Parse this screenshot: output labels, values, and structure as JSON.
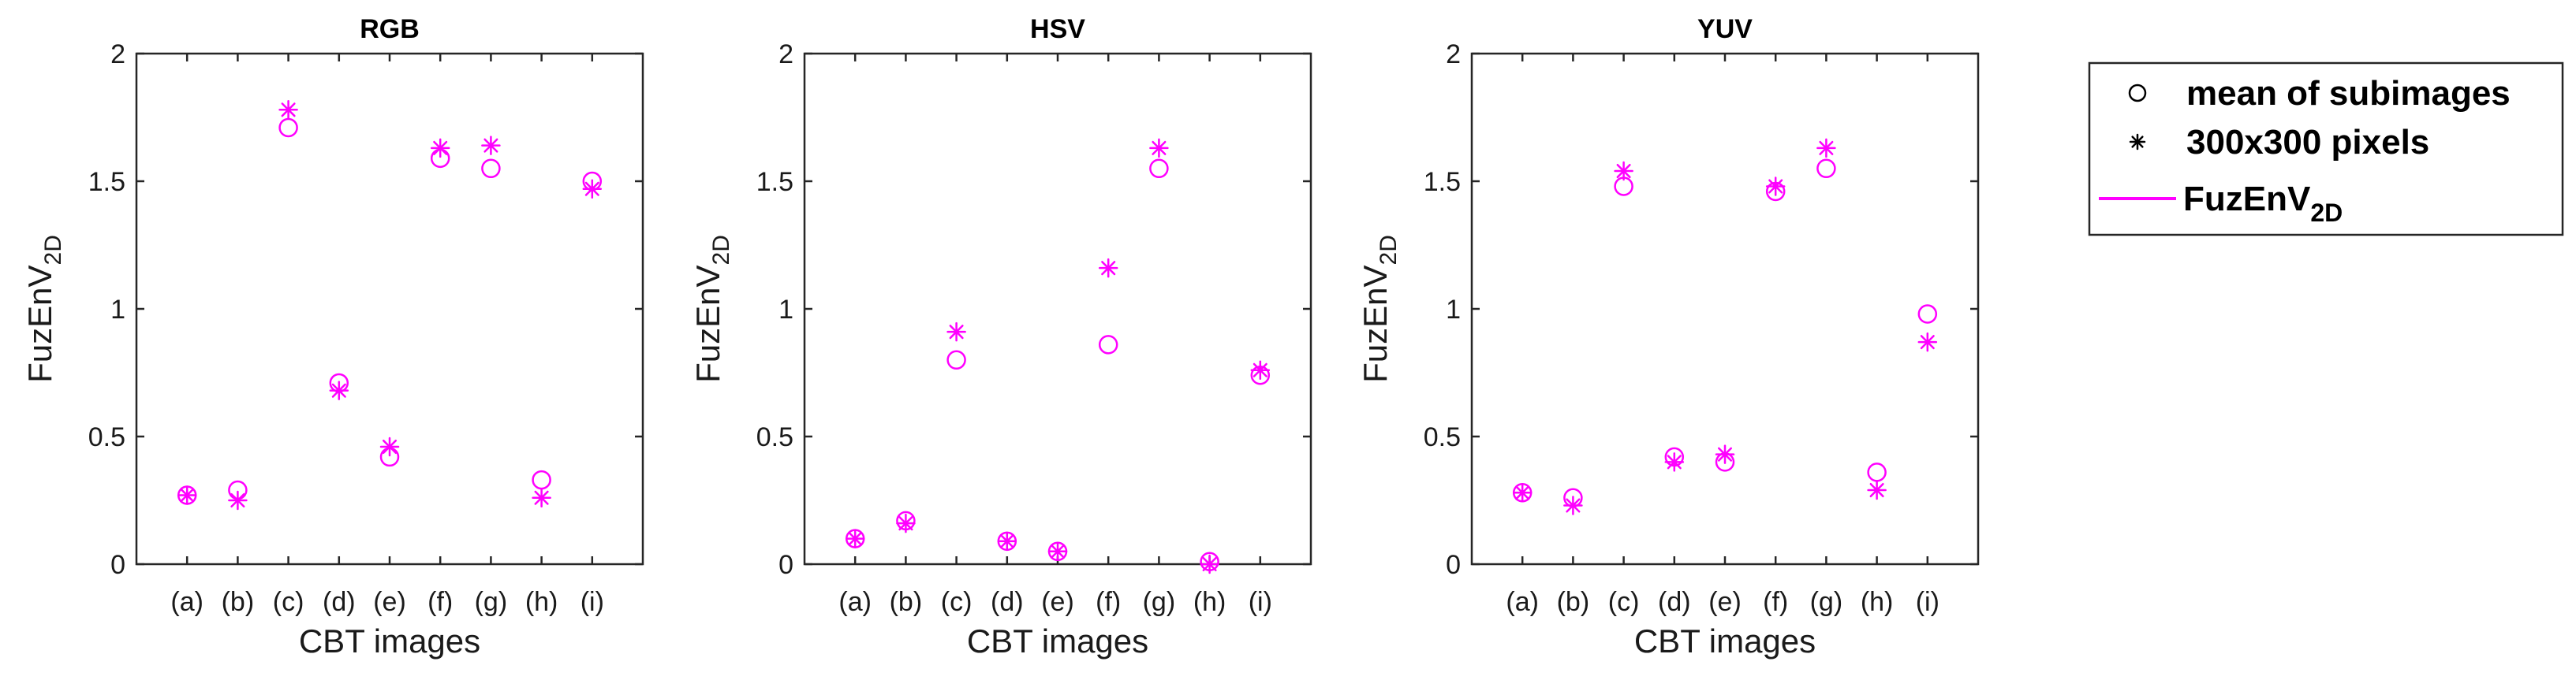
{
  "chart_data": [
    {
      "type": "scatter",
      "title": "RGB",
      "xlabel": "CBT images",
      "ylabel": "FuzEnV",
      "ylabel_subscript": "2D",
      "categories": [
        "(a)",
        "(b)",
        "(c)",
        "(d)",
        "(e)",
        "(f)",
        "(g)",
        "(h)",
        "(i)"
      ],
      "ylim": [
        0,
        2
      ],
      "yticks": [
        "0",
        "0.5",
        "1",
        "1.5",
        "2"
      ],
      "series": [
        {
          "name": "mean of subimages",
          "marker": "circle",
          "values": [
            0.27,
            0.29,
            1.71,
            0.71,
            0.42,
            1.59,
            1.55,
            0.33,
            1.5
          ]
        },
        {
          "name": "300x300 pixels",
          "marker": "asterisk",
          "values": [
            0.27,
            0.25,
            1.78,
            0.68,
            0.46,
            1.63,
            1.64,
            0.26,
            1.47
          ]
        }
      ]
    },
    {
      "type": "scatter",
      "title": "HSV",
      "xlabel": "CBT images",
      "ylabel": "FuzEnV",
      "ylabel_subscript": "2D",
      "categories": [
        "(a)",
        "(b)",
        "(c)",
        "(d)",
        "(e)",
        "(f)",
        "(g)",
        "(h)",
        "(i)"
      ],
      "ylim": [
        0,
        2
      ],
      "yticks": [
        "0",
        "0.5",
        "1",
        "1.5",
        "2"
      ],
      "series": [
        {
          "name": "mean of subimages",
          "marker": "circle",
          "values": [
            0.1,
            0.17,
            0.8,
            0.09,
            0.05,
            0.86,
            1.55,
            0.01,
            0.74
          ]
        },
        {
          "name": "300x300 pixels",
          "marker": "asterisk",
          "values": [
            0.1,
            0.16,
            0.91,
            0.09,
            0.05,
            1.16,
            1.63,
            0.0,
            0.76
          ]
        }
      ]
    },
    {
      "type": "scatter",
      "title": "YUV",
      "xlabel": "CBT images",
      "ylabel": "FuzEnV",
      "ylabel_subscript": "2D",
      "categories": [
        "(a)",
        "(b)",
        "(c)",
        "(d)",
        "(e)",
        "(f)",
        "(g)",
        "(h)",
        "(i)"
      ],
      "ylim": [
        0,
        2
      ],
      "yticks": [
        "0",
        "0.5",
        "1",
        "1.5",
        "2"
      ],
      "series": [
        {
          "name": "mean of subimages",
          "marker": "circle",
          "values": [
            0.28,
            0.26,
            1.48,
            0.42,
            0.4,
            1.46,
            1.55,
            0.36,
            0.98
          ]
        },
        {
          "name": "300x300 pixels",
          "marker": "asterisk",
          "values": [
            0.28,
            0.23,
            1.54,
            0.4,
            0.43,
            1.48,
            1.63,
            0.29,
            0.87
          ]
        }
      ]
    }
  ],
  "legend": {
    "placement": "right",
    "entries": [
      {
        "label": "mean of subimages",
        "marker": "circle",
        "subscript": ""
      },
      {
        "label": "300x300 pixels",
        "marker": "asterisk",
        "subscript": ""
      },
      {
        "label": "FuzEnV",
        "marker": "line",
        "subscript": "2D"
      }
    ]
  },
  "colors": {
    "marker": "#ff00ff",
    "legend_marker": "#000000",
    "axis": "#262626",
    "text": "#1a1a1a"
  }
}
